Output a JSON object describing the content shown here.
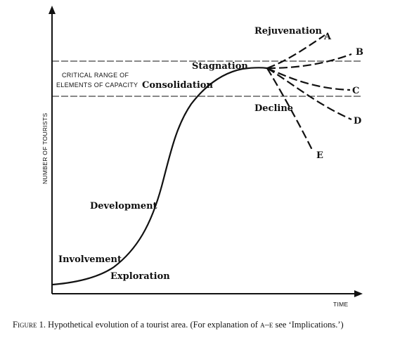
{
  "axes": {
    "y_label": "NUMBER OF TOURISTS",
    "x_label": "TIME"
  },
  "capacity": {
    "line1": "CRITICAL RANGE OF",
    "line2": "ELEMENTS OF CAPACITY"
  },
  "stages": {
    "exploration": "Exploration",
    "involvement": "Involvement",
    "development": "Development",
    "consolidation": "Consolidation",
    "stagnation": "Stagnation",
    "rejuvenation": "Rejuvenation",
    "decline": "Decline"
  },
  "outcomes": [
    "A",
    "B",
    "C",
    "D",
    "E"
  ],
  "caption": {
    "figure": "Figure",
    "number": "1.",
    "text": " Hypothetical evolution of a tourist area. (For explanation of ",
    "range": "a–e",
    "tail": " see ‘Implications.’)"
  }
}
